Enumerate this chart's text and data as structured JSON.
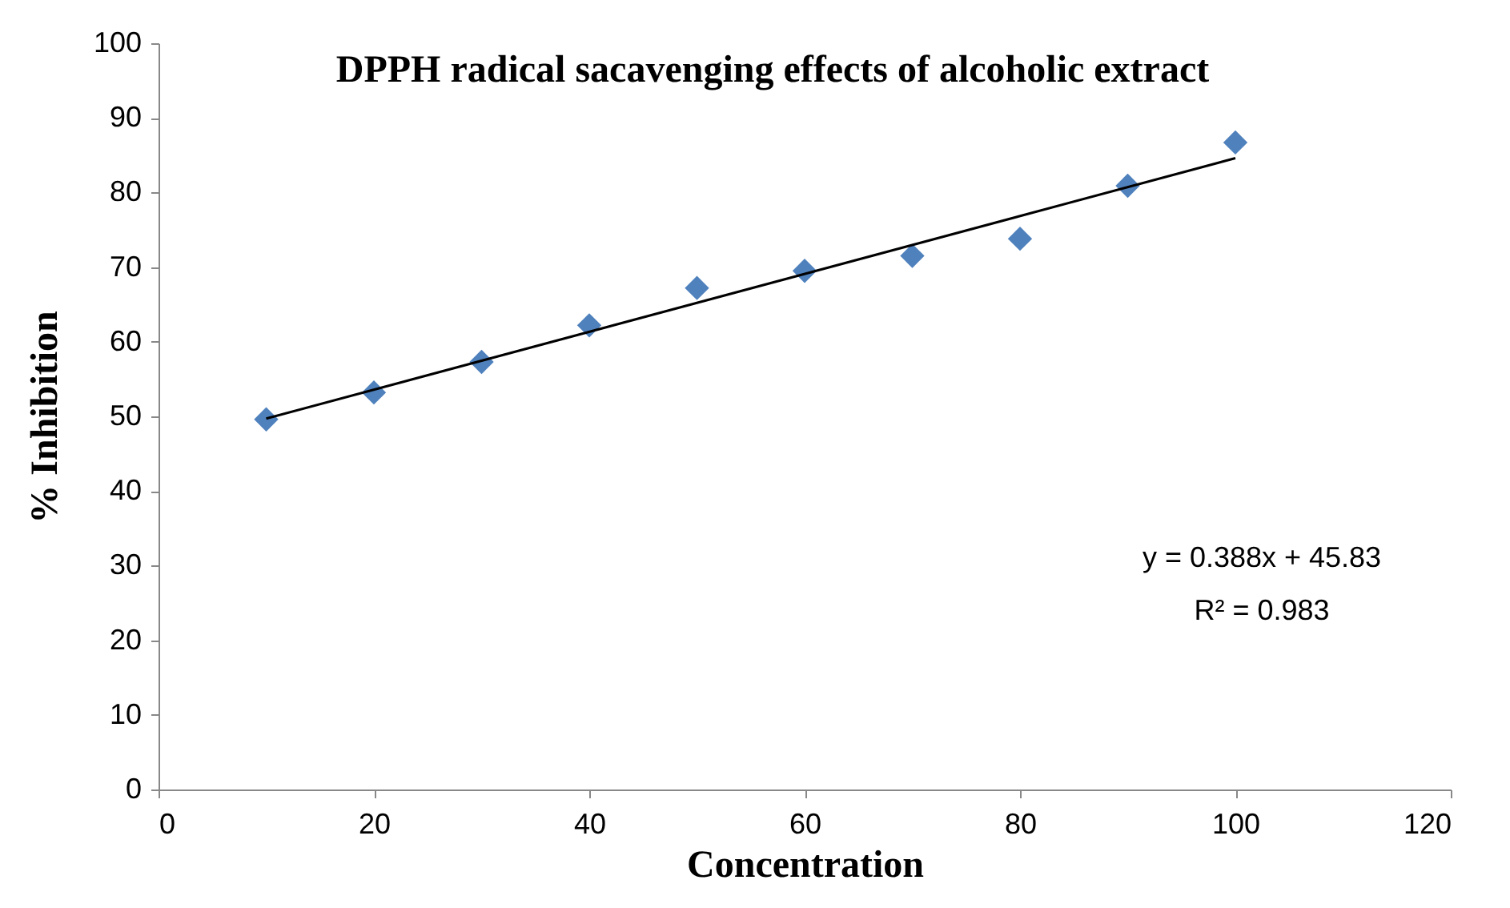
{
  "chart_data": {
    "type": "scatter",
    "title": "DPPH radical sacavenging effects of alcoholic extract",
    "xlabel": "Concentration",
    "ylabel": "% Inhibition",
    "x": [
      10,
      20,
      30,
      40,
      50,
      60,
      70,
      80,
      90,
      100
    ],
    "series": [
      {
        "color": "#4f81bd",
        "marker": "diamond",
        "values": [
          49.6,
          53.2,
          57.3,
          62.2,
          67.2,
          69.5,
          71.5,
          73.8,
          80.9,
          86.7
        ]
      },
      {
        "type": "line",
        "color": "#000000",
        "x": [
          10,
          100
        ],
        "values": [
          49.7,
          84.6
        ]
      }
    ],
    "xlim": [
      0,
      120
    ],
    "xticks": [
      0,
      20,
      40,
      60,
      80,
      100,
      120
    ],
    "ylim": [
      0,
      100
    ],
    "yticks": [
      0,
      10,
      20,
      30,
      40,
      50,
      60,
      70,
      80,
      90,
      100
    ],
    "grid": false,
    "annotations": [
      "y = 0.388x + 45.83",
      "R² = 0.983"
    ]
  }
}
